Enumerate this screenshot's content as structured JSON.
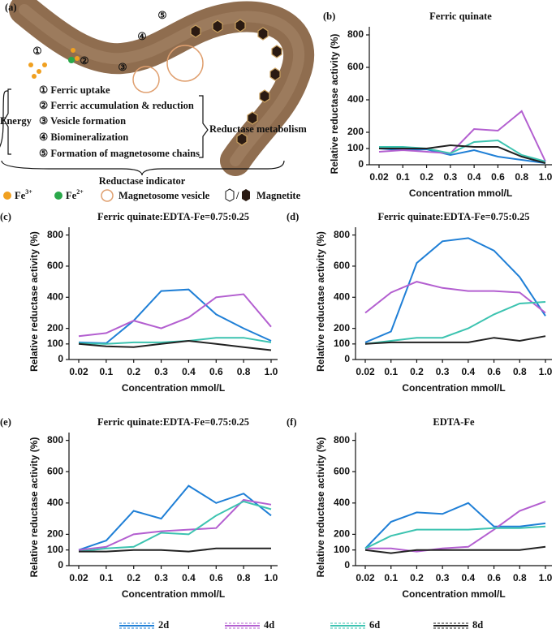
{
  "diagram": {
    "label": "(a)",
    "steps": [
      "①",
      "②",
      "③",
      "④",
      "⑤"
    ],
    "items": [
      "① Ferric uptake",
      "② Ferric accumulation & reduction",
      "③ Vesicle formation",
      "④ Biomineralization",
      "⑤ Formation of magnetosome chains"
    ],
    "energy": "Energy",
    "metabolism": "Reductase metabolism",
    "indicator": "Reductase indicator",
    "legend": [
      {
        "base": "Fe",
        "sup": "3+"
      },
      {
        "base": "Fe",
        "sup": "2+"
      },
      "Magnetosome vesicle",
      "Magnetite"
    ]
  },
  "chart_data": [
    {
      "type": "line",
      "label": "(b)",
      "title": "Ferric quinate",
      "ylabel": "Relative reductase activity (%)",
      "xlabel": "Concentration mmol/L",
      "categories": [
        "0.02",
        "0.1",
        "0.2",
        "0.3",
        "0.4",
        "0.6",
        "0.8",
        "1.0"
      ],
      "ylim": [
        0,
        850
      ],
      "yticks": [
        0,
        100,
        200,
        400,
        600,
        800
      ],
      "series": [
        {
          "name": "2d",
          "color": "#1f7fd6",
          "values": [
            100,
            90,
            95,
            60,
            90,
            50,
            30,
            10
          ]
        },
        {
          "name": "4d",
          "color": "#b35fd0",
          "values": [
            80,
            90,
            80,
            70,
            220,
            210,
            330,
            20
          ]
        },
        {
          "name": "6d",
          "color": "#3cc3b0",
          "values": [
            110,
            110,
            100,
            70,
            140,
            150,
            60,
            20
          ]
        },
        {
          "name": "8d",
          "color": "#222222",
          "values": [
            100,
            100,
            100,
            120,
            110,
            110,
            50,
            10
          ]
        }
      ]
    },
    {
      "type": "line",
      "label": "(c)",
      "title": "Ferric quinate:EDTA-Fe=0.75:0.25",
      "ylabel": "Relative reductase activity (%)",
      "xlabel": "Concentration mmol/L",
      "categories": [
        "0.02",
        "0.1",
        "0.2",
        "0.3",
        "0.4",
        "0.6",
        "0.8",
        "1.0"
      ],
      "ylim": [
        0,
        850
      ],
      "yticks": [
        0,
        100,
        200,
        400,
        600,
        800
      ],
      "series": [
        {
          "color": "#1f7fd6",
          "values": [
            110,
            105,
            250,
            440,
            450,
            290,
            200,
            120
          ]
        },
        {
          "color": "#b35fd0",
          "values": [
            150,
            170,
            250,
            200,
            270,
            400,
            420,
            210
          ]
        },
        {
          "color": "#3cc3b0",
          "values": [
            105,
            100,
            110,
            110,
            120,
            140,
            140,
            110
          ]
        },
        {
          "color": "#222222",
          "values": [
            100,
            85,
            80,
            100,
            120,
            100,
            80,
            60
          ]
        }
      ]
    },
    {
      "type": "line",
      "label": "(d)",
      "title": "Ferric quinate:EDTA-Fe=0.75:0.25",
      "ylabel": "Relative reductase activity (%)",
      "xlabel": "Concentration mmol/L",
      "categories": [
        "0.02",
        "0.1",
        "0.2",
        "0.3",
        "0.4",
        "0.6",
        "0.8",
        "1.0"
      ],
      "ylim": [
        0,
        850
      ],
      "yticks": [
        0,
        100,
        200,
        400,
        600,
        800
      ],
      "series": [
        {
          "color": "#1f7fd6",
          "values": [
            110,
            180,
            620,
            760,
            780,
            700,
            530,
            280
          ]
        },
        {
          "color": "#b35fd0",
          "values": [
            300,
            430,
            500,
            460,
            440,
            440,
            430,
            300
          ]
        },
        {
          "color": "#3cc3b0",
          "values": [
            100,
            120,
            140,
            140,
            200,
            290,
            360,
            370
          ]
        },
        {
          "color": "#222222",
          "values": [
            100,
            110,
            110,
            110,
            110,
            140,
            120,
            150
          ]
        }
      ]
    },
    {
      "type": "line",
      "label": "(e)",
      "title": "Ferric quinate:EDTA-Fe=0.75:0.25",
      "ylabel": "Relative reductase activity (%)",
      "xlabel": "Concentration mmol/L",
      "categories": [
        "0.02",
        "0.1",
        "0.2",
        "0.3",
        "0.4",
        "0.6",
        "0.8",
        "1.0"
      ],
      "ylim": [
        0,
        850
      ],
      "yticks": [
        0,
        100,
        200,
        400,
        600,
        800
      ],
      "series": [
        {
          "color": "#1f7fd6",
          "values": [
            100,
            160,
            350,
            300,
            510,
            400,
            460,
            320
          ]
        },
        {
          "color": "#b35fd0",
          "values": [
            100,
            120,
            200,
            220,
            230,
            240,
            420,
            390
          ]
        },
        {
          "color": "#3cc3b0",
          "values": [
            90,
            110,
            120,
            210,
            200,
            320,
            410,
            360
          ]
        },
        {
          "color": "#222222",
          "values": [
            90,
            90,
            100,
            100,
            90,
            110,
            110,
            110
          ]
        }
      ]
    },
    {
      "type": "line",
      "label": "(f)",
      "title": "EDTA-Fe",
      "ylabel": "Relative reductase activity (%)",
      "xlabel": "Concentration mmol/L",
      "categories": [
        "0.02",
        "0.1",
        "0.2",
        "0.3",
        "0.4",
        "0.6",
        "0.8",
        "1.0"
      ],
      "ylim": [
        0,
        850
      ],
      "yticks": [
        0,
        100,
        200,
        400,
        600,
        800
      ],
      "series": [
        {
          "color": "#1f7fd6",
          "values": [
            110,
            280,
            340,
            330,
            400,
            250,
            250,
            270
          ]
        },
        {
          "color": "#b35fd0",
          "values": [
            110,
            110,
            90,
            110,
            120,
            230,
            350,
            410
          ]
        },
        {
          "color": "#3cc3b0",
          "values": [
            110,
            190,
            230,
            230,
            230,
            240,
            240,
            250
          ]
        },
        {
          "color": "#222222",
          "values": [
            100,
            80,
            100,
            100,
            100,
            100,
            100,
            120
          ]
        }
      ]
    }
  ]
}
